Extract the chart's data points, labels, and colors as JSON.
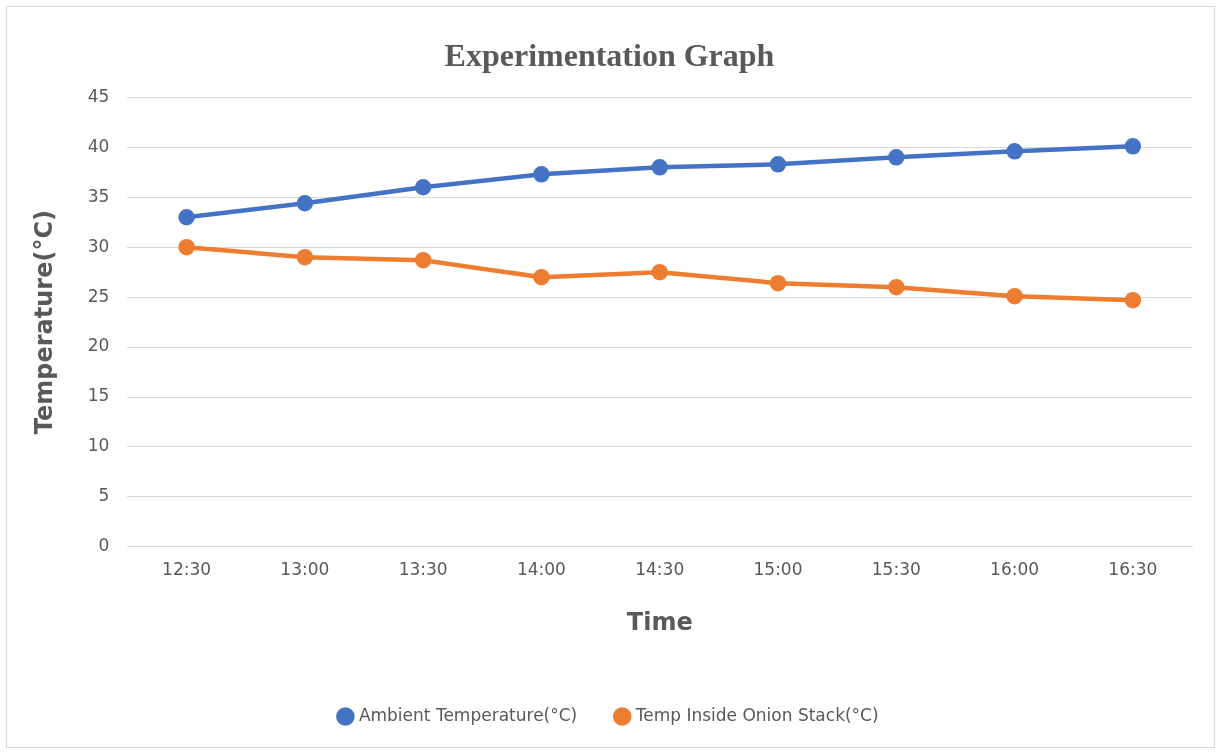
{
  "chart_data": {
    "type": "line",
    "title": "Experimentation Graph",
    "xlabel": "Time",
    "ylabel": "Temperature(°C)",
    "categories": [
      "12:30",
      "13:00",
      "13:30",
      "14:00",
      "14:30",
      "15:00",
      "15:30",
      "16:00",
      "16:30"
    ],
    "series": [
      {
        "name": "Ambient Temperature(°C)",
        "color": "#4472c4",
        "values": [
          33.0,
          34.4,
          36.0,
          37.3,
          38.0,
          38.3,
          39.0,
          39.6,
          40.1
        ]
      },
      {
        "name": "Temp Inside Onion Stack(°C)",
        "color": "#ed7d31",
        "values": [
          30.0,
          29.0,
          28.7,
          27.0,
          27.5,
          26.4,
          26.0,
          25.1,
          24.7
        ]
      }
    ],
    "ylim": [
      0,
      45
    ],
    "yticks": [
      0,
      5,
      10,
      15,
      20,
      25,
      30,
      35,
      40,
      45
    ],
    "grid": "y",
    "legend": "bottom",
    "marker": "circle",
    "line_style": "solid"
  }
}
